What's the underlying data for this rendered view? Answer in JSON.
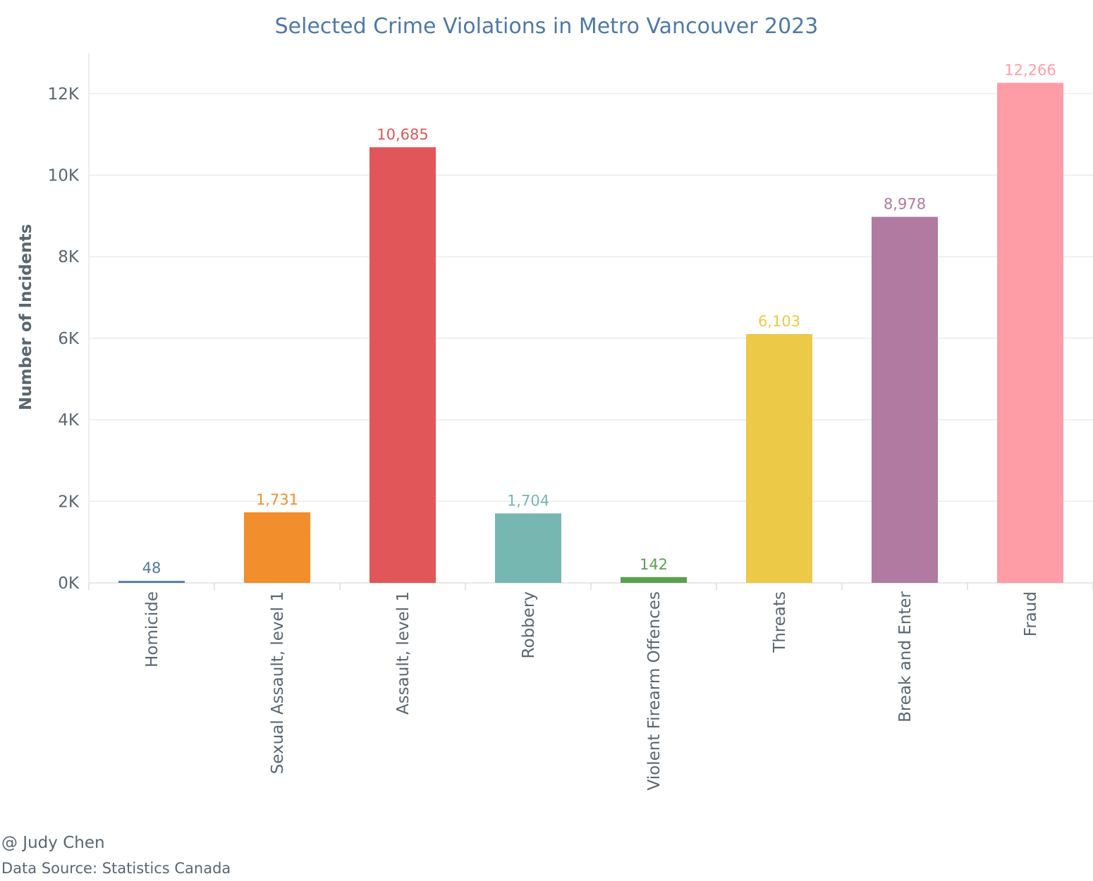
{
  "chart_data": {
    "type": "bar",
    "title": "Selected Crime Violations in Metro Vancouver 2023",
    "xlabel": "",
    "ylabel": "Number of Incidents",
    "ylim": [
      0,
      13000
    ],
    "yticks": [
      0,
      2000,
      4000,
      6000,
      8000,
      10000,
      12000
    ],
    "ytick_labels": [
      "0K",
      "2K",
      "4K",
      "6K",
      "8K",
      "10K",
      "12K"
    ],
    "grid": true,
    "categories": [
      "Homicide",
      "Sexual Assault, level 1",
      "Assault, level 1",
      "Robbery",
      "Violent Firearm Offences",
      "Threats",
      "Break and Enter",
      "Fraud"
    ],
    "values": [
      48,
      1731,
      10685,
      1704,
      142,
      6103,
      8978,
      12266
    ],
    "value_labels": [
      "48",
      "1,731",
      "10,685",
      "1,704",
      "142",
      "6,103",
      "8,978",
      "12,266"
    ],
    "colors": [
      "#4e79a7",
      "#f28e2b",
      "#e15759",
      "#76b7b2",
      "#59a14f",
      "#edc948",
      "#b07aa1",
      "#ff9da7"
    ]
  },
  "credits": {
    "author": "@ Judy Chen",
    "source": "Data Source: Statistics Canada"
  }
}
